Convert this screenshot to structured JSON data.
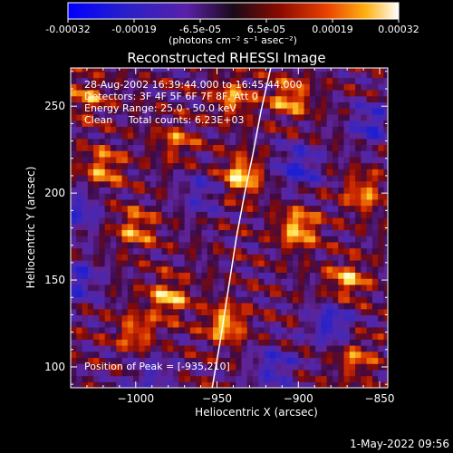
{
  "colorbar": {
    "ticks": [
      "-0.00032",
      "-0.00019",
      "-6.5e-05",
      "6.5e-05",
      "0.00019",
      "0.00032"
    ],
    "unit_label": "(photons cm⁻² s⁻¹ asec⁻²)"
  },
  "annotations": {
    "line1": "28-Aug-2002 16:39:44.000 to 16:45:44.000",
    "line2": "Detectors: 3F 4F 5F 6F 7F 8F, Att 0",
    "line3": "Energy Range: 25.0 - 50.0 keV",
    "line4": "Clean     Total counts: 6.23E+03",
    "peak": "Position of Peak = [-935,210]"
  },
  "footer": {
    "timestamp": "1-May-2022 09:56"
  },
  "chart_data": {
    "type": "heatmap",
    "title": "Reconstructed RHESSI Image",
    "xlabel": "Heliocentric X (arcsec)",
    "ylabel": "Heliocentric Y (arcsec)",
    "xlim": [
      -1040,
      -845
    ],
    "ylim": [
      88,
      272
    ],
    "xticks": [
      -1000,
      -950,
      -900,
      -850
    ],
    "yticks": [
      100,
      150,
      200,
      250
    ],
    "xtick_labels": [
      "−1000",
      "−950",
      "−900",
      "−850"
    ],
    "ytick_labels": [
      "100",
      "150",
      "200",
      "250"
    ],
    "colorbar_range": [
      -0.00032,
      0.00032
    ],
    "peak_position": [
      -935,
      210
    ],
    "limb_curve": {
      "x": [
        -953,
        -948,
        -943,
        -938,
        -933,
        -928,
        -923,
        -917
      ],
      "y": [
        88,
        115,
        145,
        175,
        200,
        222,
        247,
        272
      ]
    },
    "hot_spots": [
      {
        "x": -935,
        "y": 210,
        "level": 1.0
      },
      {
        "x": -900,
        "y": 180,
        "level": 0.95
      },
      {
        "x": -945,
        "y": 125,
        "level": 0.9
      },
      {
        "x": -980,
        "y": 140,
        "level": 0.85
      },
      {
        "x": -905,
        "y": 255,
        "level": 0.8
      },
      {
        "x": -870,
        "y": 150,
        "level": 0.8
      },
      {
        "x": -1020,
        "y": 215,
        "level": 0.75
      },
      {
        "x": -1000,
        "y": 180,
        "level": 0.72
      },
      {
        "x": -860,
        "y": 200,
        "level": 0.7
      },
      {
        "x": -940,
        "y": 255,
        "level": 0.7
      },
      {
        "x": -1000,
        "y": 120,
        "level": 0.65
      },
      {
        "x": -865,
        "y": 105,
        "level": 0.6
      },
      {
        "x": -1030,
        "y": 255,
        "level": 0.6
      },
      {
        "x": -975,
        "y": 230,
        "level": 0.55
      }
    ],
    "cold_spots": [
      {
        "x": -900,
        "y": 215,
        "level": 0.9
      },
      {
        "x": -880,
        "y": 125,
        "level": 0.9
      },
      {
        "x": -1035,
        "y": 150,
        "level": 0.8
      },
      {
        "x": -1035,
        "y": 190,
        "level": 0.75
      },
      {
        "x": -855,
        "y": 240,
        "level": 0.8
      },
      {
        "x": -915,
        "y": 100,
        "level": 0.75
      },
      {
        "x": -960,
        "y": 200,
        "level": 0.6
      },
      {
        "x": -990,
        "y": 95,
        "level": 0.6
      }
    ]
  }
}
